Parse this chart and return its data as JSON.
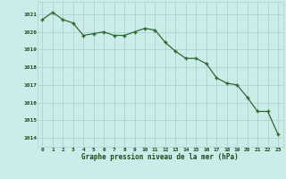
{
  "x": [
    0,
    1,
    2,
    3,
    4,
    5,
    6,
    7,
    8,
    9,
    10,
    11,
    12,
    13,
    14,
    15,
    16,
    17,
    18,
    19,
    20,
    21,
    22,
    23
  ],
  "y": [
    1020.7,
    1021.1,
    1020.7,
    1020.5,
    1019.8,
    1019.9,
    1020.0,
    1019.8,
    1019.8,
    1020.0,
    1020.2,
    1020.1,
    1019.4,
    1018.9,
    1018.5,
    1018.5,
    1018.2,
    1017.4,
    1017.1,
    1017.0,
    1016.3,
    1015.5,
    1015.5,
    1014.2
  ],
  "line_color": "#2d6a2d",
  "marker": "+",
  "bg_color": "#ccecea",
  "grid_color": "#aad4d0",
  "xlabel": "Graphe pression niveau de la mer (hPa)",
  "xlabel_color": "#1a4a1a",
  "tick_color": "#1a4a1a",
  "ylim": [
    1013.5,
    1021.7
  ],
  "xlim": [
    -0.5,
    23.5
  ],
  "yticks": [
    1014,
    1015,
    1016,
    1017,
    1018,
    1019,
    1020,
    1021
  ],
  "xticks": [
    0,
    1,
    2,
    3,
    4,
    5,
    6,
    7,
    8,
    9,
    10,
    11,
    12,
    13,
    14,
    15,
    16,
    17,
    18,
    19,
    20,
    21,
    22,
    23
  ],
  "figsize": [
    3.2,
    2.0
  ],
  "dpi": 100
}
